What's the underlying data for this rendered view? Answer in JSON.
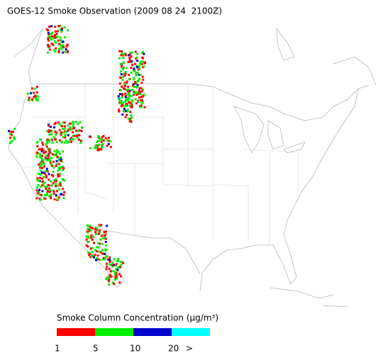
{
  "title": "GOES-12 Smoke Observation (2009 08 24  2100Z)",
  "legend": {
    "title": "Smoke Column Concentration (μg/m³)",
    "colors": [
      "#ff0000",
      "#00ee00",
      "#0000cc",
      "#00ffff"
    ],
    "labels": [
      "1",
      "5",
      "10",
      "20",
      ">"
    ]
  }
}
